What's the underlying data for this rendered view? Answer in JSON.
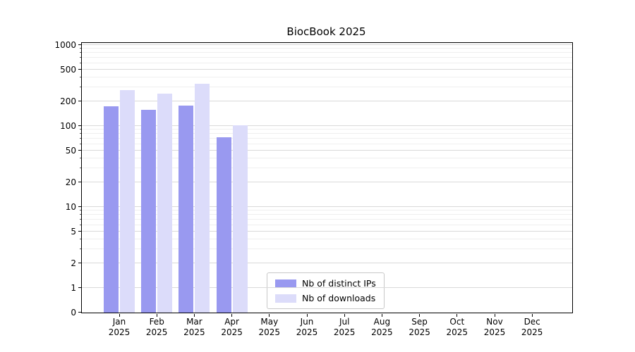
{
  "title": "BiocBook 2025",
  "chart_data": {
    "type": "bar",
    "title": "BiocBook 2025",
    "categories": [
      "Jan",
      "Feb",
      "Mar",
      "Apr",
      "May",
      "Jun",
      "Jul",
      "Aug",
      "Sep",
      "Oct",
      "Nov",
      "Dec"
    ],
    "year_label": "2025",
    "series": [
      {
        "name": "Nb of distinct IPs",
        "color": "#9999f0",
        "values": [
          175,
          160,
          180,
          72,
          null,
          null,
          null,
          null,
          null,
          null,
          null,
          null
        ]
      },
      {
        "name": "Nb of downloads",
        "color": "#dcdcfa",
        "values": [
          280,
          250,
          330,
          103,
          null,
          null,
          null,
          null,
          null,
          null,
          null,
          null
        ]
      }
    ],
    "xlabel": "",
    "ylabel": "",
    "yscale": "symlog",
    "ylim": [
      0,
      1050
    ],
    "y_ticks": [
      0,
      1,
      2,
      5,
      10,
      20,
      50,
      100,
      200,
      500,
      1000
    ],
    "y_minor_ticks": [
      3,
      4,
      6,
      7,
      8,
      9,
      30,
      40,
      60,
      70,
      80,
      90,
      300,
      400,
      600,
      700,
      800,
      900
    ],
    "grid": "horizontal",
    "legend_position": "lower center-left"
  }
}
